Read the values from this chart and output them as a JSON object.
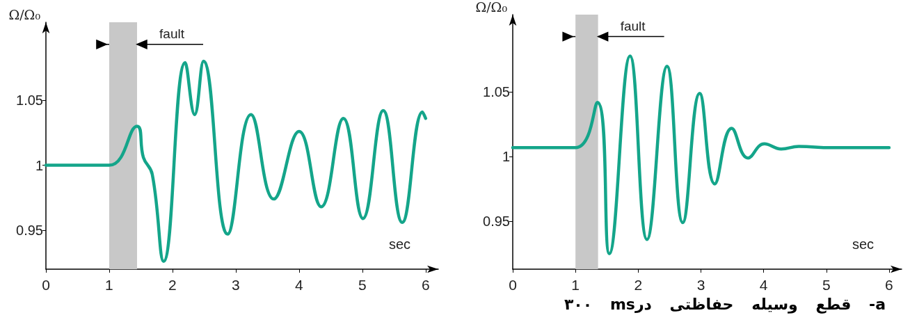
{
  "chart_data": [
    {
      "type": "line",
      "xlabel": "sec",
      "ylabel": "Ω/Ω₀",
      "annotations": [
        {
          "text": "fault",
          "x": 1.44,
          "y": 1.093
        }
      ],
      "x": [
        0,
        1,
        1.44,
        1.54,
        1.68,
        1.86,
        2.2,
        2.35,
        2.49,
        2.87,
        3.24,
        3.6,
        4.0,
        4.35,
        4.7,
        5.01,
        5.33,
        5.63,
        5.95,
        6.0
      ],
      "series": [
        {
          "color": "#14a58a",
          "values": [
            1.0,
            1.0,
            1.03,
            1.006,
            0.993,
            0.926,
            1.079,
            1.039,
            1.08,
            0.947,
            1.039,
            0.974,
            1.026,
            0.968,
            1.036,
            0.959,
            1.042,
            0.956,
            1.041,
            1.036
          ]
        }
      ],
      "bands": [
        {
          "axis": "x",
          "from": 1,
          "to": 1.44,
          "color": "#c8c8c8"
        }
      ],
      "xlim": [
        0,
        6.2
      ],
      "xticks": [
        0,
        1,
        2,
        3,
        4,
        5,
        6
      ],
      "ylim": [
        0.92,
        1.11
      ],
      "yticks": [
        0.95,
        1,
        1.05
      ],
      "marker": "none",
      "line_style": "solid"
    },
    {
      "type": "line",
      "xlabel": "sec",
      "ylabel": "Ω/Ω₀",
      "annotations": [
        {
          "text": "fault",
          "x": 1.36,
          "y": 1.093
        },
        "a- قطع وسیله حفاظتی درms ۳۰۰"
      ],
      "x": [
        0,
        1,
        1.35,
        1.54,
        1.87,
        2.14,
        2.46,
        2.71,
        2.98,
        3.22,
        3.49,
        3.75,
        4.01,
        4.28,
        4.56,
        5.08,
        6.0
      ],
      "series": [
        {
          "color": "#14a58a",
          "values": [
            1.007,
            1.007,
            1.042,
            0.925,
            1.078,
            0.936,
            1.07,
            0.949,
            1.049,
            0.979,
            1.022,
            0.999,
            1.01,
            1.006,
            1.008,
            1.007,
            1.007
          ]
        }
      ],
      "bands": [
        {
          "axis": "x",
          "from": 1,
          "to": 1.36,
          "color": "#c8c8c8"
        }
      ],
      "xlim": [
        0,
        6.2
      ],
      "xticks": [
        0,
        1,
        2,
        3,
        4,
        5,
        6
      ],
      "ylim": [
        0.913,
        1.11
      ],
      "yticks": [
        0.95,
        1,
        1.05
      ],
      "marker": "none",
      "line_style": "solid"
    }
  ]
}
